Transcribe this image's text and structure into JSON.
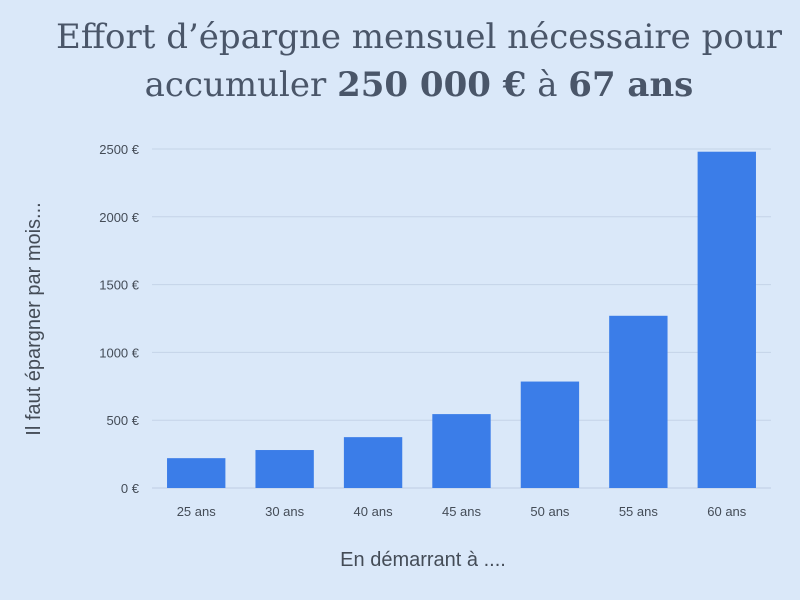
{
  "chart_data": {
    "type": "bar",
    "title_lines": [
      [
        {
          "text": "Effort d’épargne mensuel nécessaire pour",
          "bold": false
        }
      ],
      [
        {
          "text": "accumuler ",
          "bold": false
        },
        {
          "text": "250 000 €",
          "bold": true
        },
        {
          "text": " à ",
          "bold": false
        },
        {
          "text": "67 ans",
          "bold": true
        }
      ]
    ],
    "xlabel": "En démarrant à ....",
    "ylabel": "Il faut épargner par mois...",
    "categories": [
      "25 ans",
      "30 ans",
      "40 ans",
      "45 ans",
      "50 ans",
      "55 ans",
      "60 ans"
    ],
    "values": [
      220,
      280,
      375,
      545,
      785,
      1270,
      2480
    ],
    "ylim": [
      0,
      2500
    ],
    "yticks": [
      0,
      500,
      1000,
      1500,
      2000,
      2500
    ],
    "ytick_labels": [
      "0 €",
      "500 €",
      "1000 €",
      "1500 €",
      "2000 €",
      "2500 €"
    ],
    "grid": true,
    "legend": "none",
    "bar_color": "#3b7de8",
    "background_color": "#dae8f9"
  }
}
